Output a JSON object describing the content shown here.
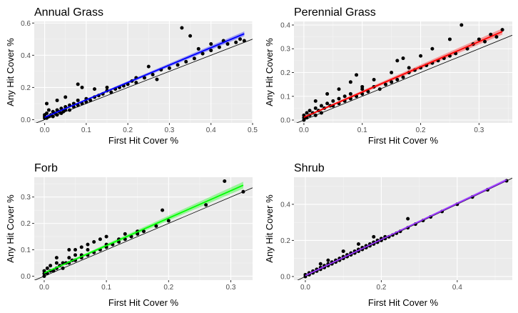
{
  "chart_data": [
    {
      "type": "scatter",
      "title": "Annual Grass",
      "xlabel": "First Hit Cover %",
      "ylabel": "Any Hit Cover %",
      "xlim": [
        -0.025,
        0.5
      ],
      "ylim": [
        -0.02,
        0.61
      ],
      "xticks": [
        0.0,
        0.1,
        0.2,
        0.3,
        0.4,
        0.5
      ],
      "xtick_labels": [
        "0.0",
        "0.1",
        "0.2",
        "0.3",
        "0.4",
        "0.5"
      ],
      "yticks": [
        0.0,
        0.2,
        0.4,
        0.6
      ],
      "ytick_labels": [
        "0.0",
        "0.2",
        "0.4",
        "0.6"
      ],
      "grid": true,
      "background": "#ebebeb",
      "fit_color": "#0000ff",
      "fit_line": {
        "intercept": 0.015,
        "slope": 1.08
      },
      "fit_band": 0.009,
      "reference_line": "y = x",
      "points": [
        [
          0,
          0.01
        ],
        [
          0,
          0.02
        ],
        [
          0,
          0.03
        ],
        [
          0.005,
          0.01
        ],
        [
          0.005,
          0.04
        ],
        [
          0.01,
          0.02
        ],
        [
          0.01,
          0.06
        ],
        [
          0.015,
          0.03
        ],
        [
          0.02,
          0.02
        ],
        [
          0.02,
          0.05
        ],
        [
          0.025,
          0.04
        ],
        [
          0.03,
          0.03
        ],
        [
          0.03,
          0.06
        ],
        [
          0.035,
          0.05
        ],
        [
          0.04,
          0.04
        ],
        [
          0.04,
          0.07
        ],
        [
          0.045,
          0.05
        ],
        [
          0.05,
          0.06
        ],
        [
          0.05,
          0.08
        ],
        [
          0.06,
          0.06
        ],
        [
          0.06,
          0.09
        ],
        [
          0.07,
          0.08
        ],
        [
          0.07,
          0.1
        ],
        [
          0.08,
          0.09
        ],
        [
          0.08,
          0.12
        ],
        [
          0.09,
          0.1
        ],
        [
          0.1,
          0.11
        ],
        [
          0.1,
          0.13
        ],
        [
          0.11,
          0.12
        ],
        [
          0.12,
          0.14
        ],
        [
          0.13,
          0.15
        ],
        [
          0.14,
          0.16
        ],
        [
          0.15,
          0.18
        ],
        [
          0.16,
          0.17
        ],
        [
          0.17,
          0.19
        ],
        [
          0.18,
          0.2
        ],
        [
          0.19,
          0.21
        ],
        [
          0.2,
          0.22
        ],
        [
          0.21,
          0.24
        ],
        [
          0.22,
          0.23
        ],
        [
          0.24,
          0.26
        ],
        [
          0.26,
          0.28
        ],
        [
          0.28,
          0.31
        ],
        [
          0.3,
          0.32
        ],
        [
          0.32,
          0.34
        ],
        [
          0.34,
          0.36
        ],
        [
          0.36,
          0.38
        ],
        [
          0.38,
          0.41
        ],
        [
          0.4,
          0.43
        ],
        [
          0.42,
          0.45
        ],
        [
          0.44,
          0.47
        ],
        [
          0.46,
          0.48
        ],
        [
          0.47,
          0.5
        ],
        [
          0.48,
          0.49
        ],
        [
          0.005,
          0.1
        ],
        [
          0.03,
          0.12
        ],
        [
          0.05,
          0.14
        ],
        [
          0.08,
          0.22
        ],
        [
          0.09,
          0.2
        ],
        [
          0.12,
          0.19
        ],
        [
          0.15,
          0.2
        ],
        [
          0.22,
          0.26
        ],
        [
          0.25,
          0.33
        ],
        [
          0.27,
          0.25
        ],
        [
          0.33,
          0.57
        ],
        [
          0.35,
          0.52
        ],
        [
          0.37,
          0.44
        ],
        [
          0.4,
          0.47
        ],
        [
          0.43,
          0.49
        ]
      ]
    },
    {
      "type": "scatter",
      "title": "Perennial Grass",
      "xlabel": "First Hit Cover %",
      "ylabel": "Any Hit Cover %",
      "xlim": [
        -0.017,
        0.357
      ],
      "ylim": [
        -0.012,
        0.415
      ],
      "xticks": [
        0.0,
        0.1,
        0.2,
        0.3
      ],
      "xtick_labels": [
        "0.0",
        "0.1",
        "0.2",
        "0.3"
      ],
      "yticks": [
        0.0,
        0.1,
        0.2,
        0.3,
        0.4
      ],
      "ytick_labels": [
        "0.0",
        "0.1",
        "0.2",
        "0.3",
        "0.4"
      ],
      "grid": true,
      "background": "#ebebeb",
      "fit_color": "#ff0000",
      "fit_line": {
        "intercept": 0.012,
        "slope": 1.06
      },
      "fit_band": 0.008,
      "reference_line": "y = x",
      "points": [
        [
          0,
          0.0
        ],
        [
          0,
          0.01
        ],
        [
          0,
          0.02
        ],
        [
          0.005,
          0.01
        ],
        [
          0.005,
          0.03
        ],
        [
          0.01,
          0.02
        ],
        [
          0.01,
          0.04
        ],
        [
          0.015,
          0.03
        ],
        [
          0.02,
          0.02
        ],
        [
          0.02,
          0.05
        ],
        [
          0.025,
          0.04
        ],
        [
          0.03,
          0.03
        ],
        [
          0.03,
          0.06
        ],
        [
          0.035,
          0.05
        ],
        [
          0.04,
          0.07
        ],
        [
          0.045,
          0.06
        ],
        [
          0.05,
          0.06
        ],
        [
          0.05,
          0.08
        ],
        [
          0.06,
          0.07
        ],
        [
          0.06,
          0.09
        ],
        [
          0.07,
          0.08
        ],
        [
          0.07,
          0.1
        ],
        [
          0.08,
          0.09
        ],
        [
          0.08,
          0.11
        ],
        [
          0.09,
          0.1
        ],
        [
          0.1,
          0.11
        ],
        [
          0.1,
          0.13
        ],
        [
          0.11,
          0.12
        ],
        [
          0.12,
          0.14
        ],
        [
          0.13,
          0.13
        ],
        [
          0.14,
          0.15
        ],
        [
          0.15,
          0.16
        ],
        [
          0.16,
          0.17
        ],
        [
          0.17,
          0.18
        ],
        [
          0.18,
          0.2
        ],
        [
          0.19,
          0.21
        ],
        [
          0.2,
          0.22
        ],
        [
          0.21,
          0.23
        ],
        [
          0.22,
          0.24
        ],
        [
          0.23,
          0.25
        ],
        [
          0.24,
          0.26
        ],
        [
          0.25,
          0.27
        ],
        [
          0.26,
          0.28
        ],
        [
          0.28,
          0.3
        ],
        [
          0.3,
          0.34
        ],
        [
          0.32,
          0.36
        ],
        [
          0.34,
          0.38
        ],
        [
          0.02,
          0.08
        ],
        [
          0.04,
          0.11
        ],
        [
          0.06,
          0.13
        ],
        [
          0.08,
          0.16
        ],
        [
          0.09,
          0.19
        ],
        [
          0.1,
          0.14
        ],
        [
          0.12,
          0.17
        ],
        [
          0.15,
          0.2
        ],
        [
          0.16,
          0.25
        ],
        [
          0.17,
          0.26
        ],
        [
          0.18,
          0.22
        ],
        [
          0.2,
          0.27
        ],
        [
          0.22,
          0.3
        ],
        [
          0.25,
          0.34
        ],
        [
          0.27,
          0.4
        ],
        [
          0.29,
          0.32
        ],
        [
          0.31,
          0.33
        ],
        [
          0.33,
          0.35
        ]
      ]
    },
    {
      "type": "scatter",
      "title": "Forb",
      "xlabel": "First Hit Cover %",
      "ylabel": "Any Hit Cover %",
      "xlim": [
        -0.016,
        0.335
      ],
      "ylim": [
        -0.015,
        0.375
      ],
      "xticks": [
        0.0,
        0.1,
        0.2,
        0.3
      ],
      "xtick_labels": [
        "0.0",
        "0.1",
        "0.2",
        "0.3"
      ],
      "yticks": [
        0.0,
        0.1,
        0.2,
        0.3
      ],
      "ytick_labels": [
        "0.0",
        "0.1",
        "0.2",
        "0.3"
      ],
      "grid": true,
      "background": "#ebebeb",
      "fit_color": "#00ff00",
      "fit_line": {
        "intercept": 0.012,
        "slope": 1.04
      },
      "fit_band": 0.008,
      "reference_line": "y = x",
      "points": [
        [
          0,
          0.0
        ],
        [
          0,
          0.01
        ],
        [
          0,
          0.02
        ],
        [
          0.005,
          0.01
        ],
        [
          0.005,
          0.03
        ],
        [
          0.01,
          0.02
        ],
        [
          0.01,
          0.04
        ],
        [
          0.015,
          0.02
        ],
        [
          0.02,
          0.03
        ],
        [
          0.02,
          0.05
        ],
        [
          0.025,
          0.04
        ],
        [
          0.03,
          0.03
        ],
        [
          0.03,
          0.05
        ],
        [
          0.035,
          0.05
        ],
        [
          0.04,
          0.05
        ],
        [
          0.04,
          0.07
        ],
        [
          0.045,
          0.06
        ],
        [
          0.05,
          0.06
        ],
        [
          0.05,
          0.08
        ],
        [
          0.06,
          0.07
        ],
        [
          0.06,
          0.08
        ],
        [
          0.07,
          0.08
        ],
        [
          0.07,
          0.1
        ],
        [
          0.08,
          0.09
        ],
        [
          0.09,
          0.1
        ],
        [
          0.1,
          0.11
        ],
        [
          0.1,
          0.12
        ],
        [
          0.11,
          0.12
        ],
        [
          0.12,
          0.13
        ],
        [
          0.13,
          0.14
        ],
        [
          0.14,
          0.15
        ],
        [
          0.15,
          0.16
        ],
        [
          0.16,
          0.17
        ],
        [
          0.18,
          0.19
        ],
        [
          0.2,
          0.21
        ],
        [
          0.26,
          0.27
        ],
        [
          0.29,
          0.36
        ],
        [
          0.32,
          0.32
        ],
        [
          0.02,
          0.07
        ],
        [
          0.04,
          0.1
        ],
        [
          0.05,
          0.1
        ],
        [
          0.06,
          0.11
        ],
        [
          0.07,
          0.12
        ],
        [
          0.08,
          0.13
        ],
        [
          0.09,
          0.14
        ],
        [
          0.1,
          0.15
        ],
        [
          0.12,
          0.14
        ],
        [
          0.13,
          0.16
        ],
        [
          0.15,
          0.17
        ],
        [
          0.19,
          0.25
        ]
      ]
    },
    {
      "type": "scatter",
      "title": "Shrub",
      "xlabel": "First Hit Cover %",
      "ylabel": "Any Hit Cover %",
      "xlim": [
        -0.03,
        0.545
      ],
      "ylim": [
        -0.02,
        0.55
      ],
      "xticks": [
        0.0,
        0.2,
        0.4
      ],
      "xtick_labels": [
        "0.0",
        "0.2",
        "0.4"
      ],
      "yticks": [
        0.0,
        0.2,
        0.4
      ],
      "ytick_labels": [
        "0.0",
        "0.2",
        "0.4"
      ],
      "grid": true,
      "background": "#ebebeb",
      "fit_color": "#9933ff",
      "fit_line": {
        "intercept": 0.005,
        "slope": 1.0
      },
      "fit_band": 0.005,
      "reference_line": "y = x",
      "points": [
        [
          0,
          0.0
        ],
        [
          0,
          0.01
        ],
        [
          0.01,
          0.01
        ],
        [
          0.01,
          0.02
        ],
        [
          0.02,
          0.02
        ],
        [
          0.02,
          0.03
        ],
        [
          0.03,
          0.03
        ],
        [
          0.03,
          0.04
        ],
        [
          0.04,
          0.04
        ],
        [
          0.04,
          0.05
        ],
        [
          0.05,
          0.05
        ],
        [
          0.05,
          0.06
        ],
        [
          0.06,
          0.06
        ],
        [
          0.06,
          0.07
        ],
        [
          0.07,
          0.07
        ],
        [
          0.07,
          0.08
        ],
        [
          0.08,
          0.08
        ],
        [
          0.08,
          0.09
        ],
        [
          0.09,
          0.09
        ],
        [
          0.09,
          0.1
        ],
        [
          0.1,
          0.1
        ],
        [
          0.1,
          0.11
        ],
        [
          0.11,
          0.11
        ],
        [
          0.11,
          0.12
        ],
        [
          0.12,
          0.12
        ],
        [
          0.12,
          0.13
        ],
        [
          0.13,
          0.13
        ],
        [
          0.13,
          0.14
        ],
        [
          0.14,
          0.14
        ],
        [
          0.14,
          0.15
        ],
        [
          0.15,
          0.15
        ],
        [
          0.15,
          0.16
        ],
        [
          0.16,
          0.16
        ],
        [
          0.16,
          0.17
        ],
        [
          0.17,
          0.17
        ],
        [
          0.17,
          0.18
        ],
        [
          0.18,
          0.18
        ],
        [
          0.18,
          0.19
        ],
        [
          0.19,
          0.19
        ],
        [
          0.19,
          0.2
        ],
        [
          0.2,
          0.2
        ],
        [
          0.2,
          0.21
        ],
        [
          0.21,
          0.21
        ],
        [
          0.21,
          0.22
        ],
        [
          0.22,
          0.22
        ],
        [
          0.23,
          0.23
        ],
        [
          0.24,
          0.24
        ],
        [
          0.25,
          0.25
        ],
        [
          0.27,
          0.27
        ],
        [
          0.27,
          0.32
        ],
        [
          0.29,
          0.29
        ],
        [
          0.31,
          0.31
        ],
        [
          0.33,
          0.33
        ],
        [
          0.36,
          0.36
        ],
        [
          0.4,
          0.4
        ],
        [
          0.44,
          0.44
        ],
        [
          0.48,
          0.48
        ],
        [
          0.53,
          0.53
        ],
        [
          0.04,
          0.07
        ],
        [
          0.06,
          0.09
        ],
        [
          0.1,
          0.14
        ],
        [
          0.14,
          0.18
        ],
        [
          0.18,
          0.22
        ]
      ]
    }
  ]
}
